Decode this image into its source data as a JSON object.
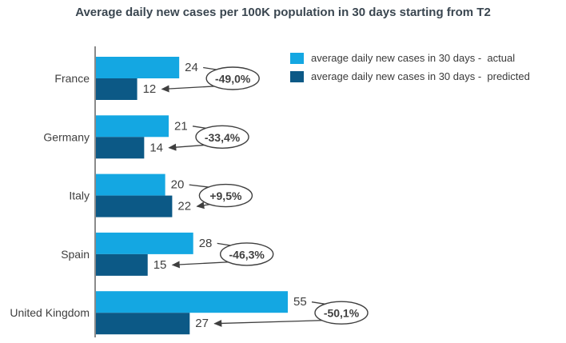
{
  "title": "Average daily new cases per 100K population in 30 days starting from T2",
  "colors": {
    "actual": "#14A7E2",
    "predicted": "#0C5986",
    "axis": "#8A8A8A",
    "annotation": "#3F3F3F",
    "title_text": "#3A4650",
    "label_text": "#3F3F3F"
  },
  "legend": [
    {
      "key": "actual",
      "label": "average daily new cases in 30 days -  actual"
    },
    {
      "key": "predicted",
      "label": "average daily new cases in 30 days -  predicted"
    }
  ],
  "chart_data": {
    "type": "bar",
    "orientation": "horizontal",
    "title": "Average daily new cases per 100K population in 30 days starting from T2",
    "categories": [
      "France",
      "Germany",
      "Italy",
      "Spain",
      "United Kingdom"
    ],
    "series": [
      {
        "name": "average daily new cases in 30 days -  actual",
        "values": [
          24,
          21,
          20,
          28,
          55
        ]
      },
      {
        "name": "average daily new cases in 30 days -  predicted",
        "values": [
          12,
          14,
          22,
          15,
          27
        ]
      }
    ],
    "annotations": [
      "-49,0%",
      "-33,4%",
      "+9,5%",
      "-46,3%",
      "-50,1%"
    ],
    "xlim": [
      0,
      60
    ],
    "grid": false,
    "legend_position": "top-right"
  }
}
